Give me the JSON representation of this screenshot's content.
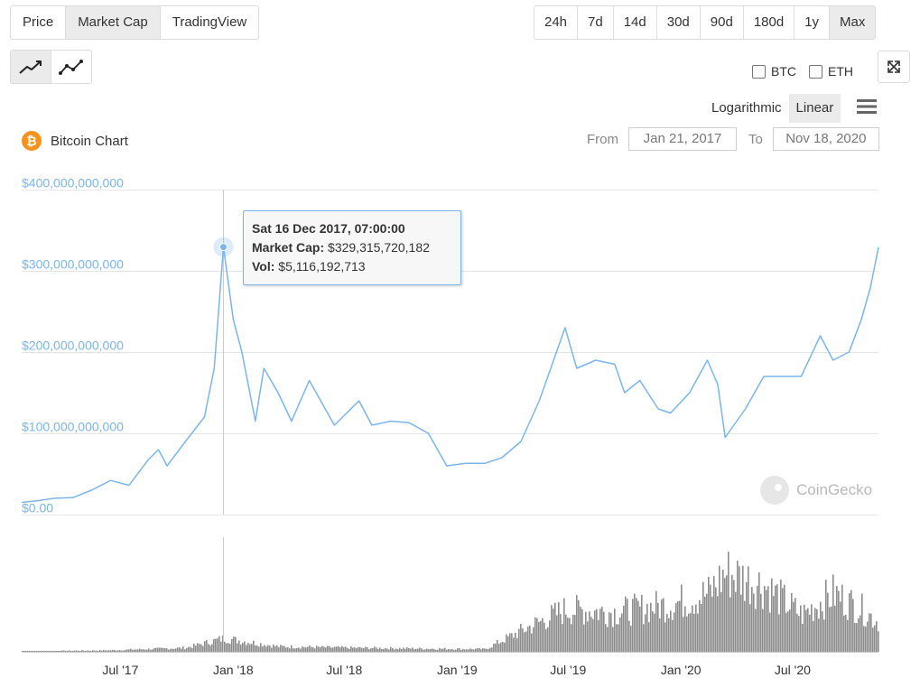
{
  "tabs": [
    {
      "label": "Price",
      "active": false
    },
    {
      "label": "Market Cap",
      "active": true
    },
    {
      "label": "TradingView",
      "active": false
    }
  ],
  "ranges": [
    {
      "label": "24h",
      "active": false
    },
    {
      "label": "7d",
      "active": false
    },
    {
      "label": "14d",
      "active": false
    },
    {
      "label": "30d",
      "active": false
    },
    {
      "label": "90d",
      "active": false
    },
    {
      "label": "180d",
      "active": false
    },
    {
      "label": "1y",
      "active": false
    },
    {
      "label": "Max",
      "active": true
    }
  ],
  "chart_type_icons": [
    "line-chart-icon",
    "point-line-chart-icon"
  ],
  "compare": {
    "btc_label": "BTC",
    "eth_label": "ETH"
  },
  "scale": {
    "log_label": "Logarithmic",
    "linear_label": "Linear",
    "active": "Linear"
  },
  "chart_title": "Bitcoin Chart",
  "date_range": {
    "from_label": "From",
    "from_value": "Jan 21, 2017",
    "to_label": "To",
    "to_value": "Nov 18, 2020"
  },
  "tooltip": {
    "date": "Sat 16 Dec 2017, 07:00:00",
    "market_cap_label": "Market Cap:",
    "market_cap_value": "$329,315,720,182",
    "vol_label": "Vol:",
    "vol_value": "$5,116,192,713"
  },
  "watermark": "CoinGecko",
  "colors": {
    "line": "#7cb5ec",
    "volume": "#888888",
    "bitcoin": "#f7931a",
    "active_button": "#ebebeb"
  },
  "chart_data": {
    "type": "line",
    "title": "Bitcoin Chart",
    "y_unit": "USD market cap",
    "ylim": [
      0,
      400000000000
    ],
    "y_ticks": [
      "$0.00",
      "$100,000,000,000",
      "$200,000,000,000",
      "$300,000,000,000",
      "$400,000,000,000"
    ],
    "x_ticks": [
      "Jul '17",
      "Jan '18",
      "Jul '18",
      "Jan '19",
      "Jul '19",
      "Jan '20",
      "Jul '20"
    ],
    "x_tick_dates": [
      "2017-07-01",
      "2018-01-01",
      "2018-07-01",
      "2019-01-01",
      "2019-07-01",
      "2020-01-01",
      "2020-07-01"
    ],
    "xlim": [
      "2017-01-21",
      "2020-11-18"
    ],
    "grid": true,
    "legend": "none",
    "series": [
      {
        "x": [
          "2017-01-21",
          "2017-02-15",
          "2017-03-15",
          "2017-04-15",
          "2017-05-15",
          "2017-06-15",
          "2017-07-15",
          "2017-08-15",
          "2017-09-01",
          "2017-09-15",
          "2017-10-15",
          "2017-11-15",
          "2017-12-01",
          "2017-12-16",
          "2018-01-01",
          "2018-01-15",
          "2018-02-06",
          "2018-02-20",
          "2018-03-15",
          "2018-04-06",
          "2018-05-05",
          "2018-06-15",
          "2018-07-25",
          "2018-08-15",
          "2018-09-15",
          "2018-10-15",
          "2018-11-15",
          "2018-12-15",
          "2019-01-15",
          "2019-02-15",
          "2019-03-15",
          "2019-04-15",
          "2019-05-15",
          "2019-06-26",
          "2019-07-15",
          "2019-08-15",
          "2019-09-15",
          "2019-10-01",
          "2019-10-26",
          "2019-11-25",
          "2019-12-15",
          "2020-01-15",
          "2020-02-13",
          "2020-03-01",
          "2020-03-13",
          "2020-04-15",
          "2020-05-15",
          "2020-06-15",
          "2020-07-15",
          "2020-08-15",
          "2020-09-05",
          "2020-10-01",
          "2020-10-21",
          "2020-11-05",
          "2020-11-18"
        ],
        "y": [
          15000000000,
          17000000000,
          20000000000,
          21000000000,
          30000000000,
          42000000000,
          36000000000,
          67000000000,
          80000000000,
          60000000000,
          90000000000,
          120000000000,
          180000000000,
          329315720182,
          240000000000,
          200000000000,
          115000000000,
          180000000000,
          150000000000,
          115000000000,
          165000000000,
          110000000000,
          140000000000,
          110000000000,
          115000000000,
          113000000000,
          100000000000,
          60000000000,
          63000000000,
          63000000000,
          70000000000,
          90000000000,
          140000000000,
          230000000000,
          180000000000,
          190000000000,
          185000000000,
          150000000000,
          165000000000,
          130000000000,
          125000000000,
          150000000000,
          190000000000,
          160000000000,
          95000000000,
          130000000000,
          170000000000,
          170000000000,
          170000000000,
          220000000000,
          190000000000,
          200000000000,
          240000000000,
          280000000000,
          329000000000
        ]
      }
    ],
    "volume_series": {
      "name": "Vol",
      "x": [
        "2017-01-21",
        "2017-06-15",
        "2017-10-15",
        "2017-12-16",
        "2018-03-15",
        "2018-07-15",
        "2018-11-15",
        "2019-02-15",
        "2019-04-15",
        "2019-06-26",
        "2019-09-15",
        "2019-12-15",
        "2020-02-15",
        "2020-03-13",
        "2020-05-15",
        "2020-07-15",
        "2020-09-05",
        "2020-10-21",
        "2020-11-18"
      ],
      "y": [
        200000000,
        600000000,
        1500000000,
        5116192713,
        2000000000,
        1500000000,
        1200000000,
        1000000000,
        8000000000,
        16000000000,
        15000000000,
        18000000000,
        22000000000,
        30000000000,
        25000000000,
        14000000000,
        22000000000,
        16000000000,
        11000000000
      ]
    }
  }
}
